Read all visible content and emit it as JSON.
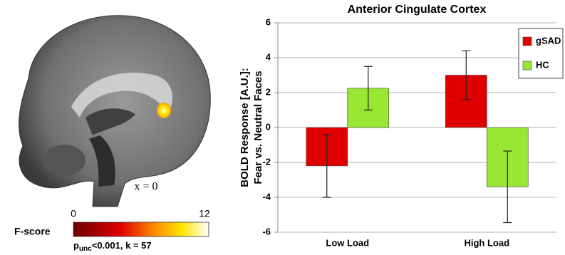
{
  "brain_panel": {
    "slice_label": "x = 0",
    "colorbar": {
      "label": "F-score",
      "min": 0,
      "max": 12,
      "stats": {
        "p": "p",
        "subscript": "unc",
        "rest": "<0.001, k = 57"
      }
    }
  },
  "chart_data": {
    "type": "bar",
    "title": "Anterior Cingulate Cortex",
    "y_label": [
      "BOLD Response [A.U.]:",
      "Fear vs. Neutral Faces"
    ],
    "categories": [
      "Low Load",
      "High Load"
    ],
    "series": [
      {
        "name": "gSAD",
        "color": "#e00000",
        "values": [
          -2.2,
          3.0
        ],
        "errors": [
          1.8,
          1.4
        ]
      },
      {
        "name": "HC",
        "color": "#99e633",
        "values": [
          2.25,
          -3.4
        ],
        "errors": [
          1.25,
          2.05
        ]
      }
    ],
    "ylim": [
      -6,
      6
    ],
    "yticks": [
      -6,
      -4,
      -2,
      0,
      2,
      4,
      6
    ],
    "grid": true,
    "legend": "upper-right"
  }
}
